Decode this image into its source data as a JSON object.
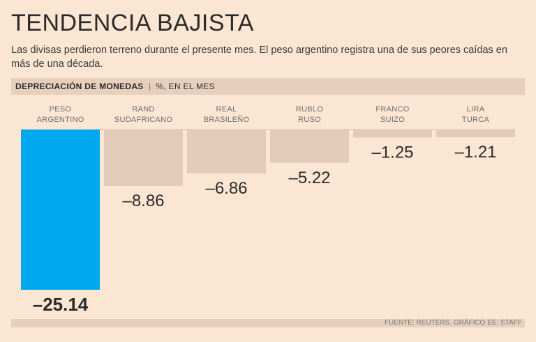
{
  "header": {
    "title": "TENDENCIA BAJISTA",
    "subtitle": "Las divisas perdieron terreno durante el presente mes. El peso argentino registra una de sus peores caídas en más de una década.",
    "band_label": "DEPRECIACIÓN DE MONEDAS",
    "band_separator": "|",
    "band_unit": "%, EN EL MES"
  },
  "footer": {
    "source": "FUENTE: REUTERS. GRÁFICO EE: STAFF"
  },
  "chart_data": {
    "type": "bar",
    "categories": [
      [
        "PESO",
        "ARGENTINO"
      ],
      [
        "RAND",
        "SUDAFRICANO"
      ],
      [
        "REAL",
        "BRASILEÑO"
      ],
      [
        "RUBLO",
        "RUSO"
      ],
      [
        "FRANCO",
        "SUIZO"
      ],
      [
        "LIRA",
        "TURCA"
      ]
    ],
    "values": [
      -25.14,
      -8.86,
      -6.86,
      -5.22,
      -1.25,
      -1.21
    ],
    "value_labels": [
      "–25.14",
      "–8.86",
      "–6.86",
      "–5.22",
      "–1.25",
      "–1.21"
    ],
    "ylim": [
      -25.14,
      0
    ],
    "highlight_index": 0,
    "colors": {
      "highlight": "#00a9ee",
      "normal": "#e2cbb8",
      "axis": "#d8bfab"
    },
    "grid": false,
    "legend": "none"
  }
}
